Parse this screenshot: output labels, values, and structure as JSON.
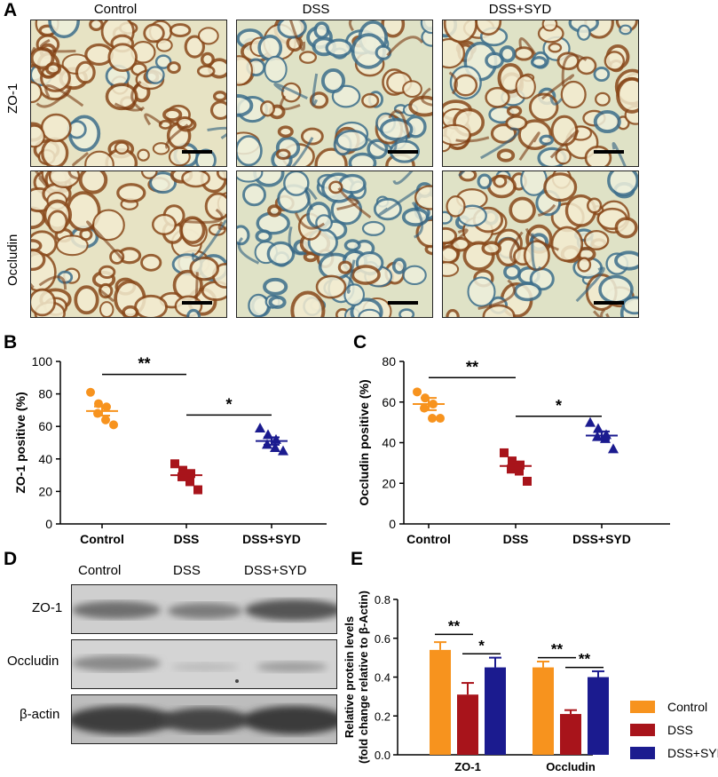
{
  "figure": {
    "panel_a": {
      "letter": "A",
      "columns": [
        "Control",
        "DSS",
        "DSS+SYD"
      ],
      "rows": [
        "ZO-1",
        "Occludin"
      ]
    },
    "panel_b": {
      "letter": "B"
    },
    "panel_c": {
      "letter": "C"
    },
    "panel_d": {
      "letter": "D",
      "lanes": [
        "Control",
        "DSS",
        "DSS+SYD"
      ],
      "bands": [
        "ZO-1",
        "Occludin",
        "β-actin"
      ]
    },
    "panel_e": {
      "letter": "E"
    },
    "colors": {
      "control": "#f7931e",
      "dss": "#a8141b",
      "dss_syd": "#1b1b8f"
    }
  },
  "chart_data": [
    {
      "id": "B",
      "type": "scatter",
      "categories": [
        "Control",
        "DSS",
        "DSS+SYD"
      ],
      "series": [
        {
          "category": "Control",
          "marker": "circle",
          "color": "#f7931e",
          "points": [
            81,
            74,
            72,
            68,
            64,
            61
          ],
          "mean": 69.5,
          "sem": 2.8
        },
        {
          "category": "DSS",
          "marker": "square",
          "color": "#a8141b",
          "points": [
            37,
            33,
            31,
            29,
            26,
            21
          ],
          "mean": 30,
          "sem": 2.4
        },
        {
          "category": "DSS+SYD",
          "marker": "triangle",
          "color": "#1b1b8f",
          "points": [
            59,
            55,
            52,
            49,
            47,
            45
          ],
          "mean": 51,
          "sem": 2.3
        }
      ],
      "ylabel": "ZO-1 positive (%)",
      "ylim": [
        0,
        100
      ],
      "yticks": [
        "0",
        "20",
        "40",
        "60",
        "80",
        "100"
      ],
      "significance": [
        {
          "from": 0,
          "to": 1,
          "label": "**",
          "y": 92
        },
        {
          "from": 1,
          "to": 2,
          "label": "*",
          "y": 67
        }
      ]
    },
    {
      "id": "C",
      "type": "scatter",
      "categories": [
        "Control",
        "DSS",
        "DSS+SYD"
      ],
      "series": [
        {
          "category": "Control",
          "marker": "circle",
          "color": "#f7931e",
          "points": [
            65,
            62,
            59,
            57,
            52,
            52
          ],
          "mean": 59,
          "sem": 3
        },
        {
          "category": "DSS",
          "marker": "square",
          "color": "#a8141b",
          "points": [
            35,
            31,
            29,
            27,
            26,
            21
          ],
          "mean": 28.5,
          "sem": 2
        },
        {
          "category": "DSS+SYD",
          "marker": "triangle",
          "color": "#1b1b8f",
          "points": [
            50,
            47,
            44,
            43,
            42,
            37
          ],
          "mean": 43.5,
          "sem": 2
        }
      ],
      "ylabel": "Occludin positive (%)",
      "ylim": [
        0,
        80
      ],
      "yticks": [
        "0",
        "20",
        "40",
        "60",
        "80"
      ],
      "significance": [
        {
          "from": 0,
          "to": 1,
          "label": "**",
          "y": 72
        },
        {
          "from": 1,
          "to": 2,
          "label": "*",
          "y": 53
        }
      ]
    },
    {
      "id": "E",
      "type": "bar",
      "categories": [
        "ZO-1",
        "Occludin"
      ],
      "series": [
        {
          "name": "Control",
          "color": "#f7931e",
          "values": [
            0.54,
            0.45
          ],
          "errors": [
            0.04,
            0.03
          ]
        },
        {
          "name": "DSS",
          "color": "#a8141b",
          "values": [
            0.31,
            0.21
          ],
          "errors": [
            0.06,
            0.02
          ]
        },
        {
          "name": "DSS+SYD",
          "color": "#1b1b8f",
          "values": [
            0.45,
            0.4
          ],
          "errors": [
            0.05,
            0.03
          ]
        }
      ],
      "ylabel_line1": "Relative protein levels",
      "ylabel_line2": "(fold change relative to β-Actin)",
      "ylim": [
        0,
        0.8
      ],
      "yticks": [
        "0.0",
        "0.2",
        "0.4",
        "0.6",
        "0.8"
      ],
      "significance": [
        {
          "group": 0,
          "from": 0,
          "to": 1,
          "label": "**",
          "y": 0.62
        },
        {
          "group": 0,
          "from": 1,
          "to": 2,
          "label": "*",
          "y": 0.52
        },
        {
          "group": 1,
          "from": 0,
          "to": 1,
          "label": "**",
          "y": 0.5
        },
        {
          "group": 1,
          "from": 1,
          "to": 2,
          "label": "**",
          "y": 0.45
        }
      ]
    }
  ]
}
